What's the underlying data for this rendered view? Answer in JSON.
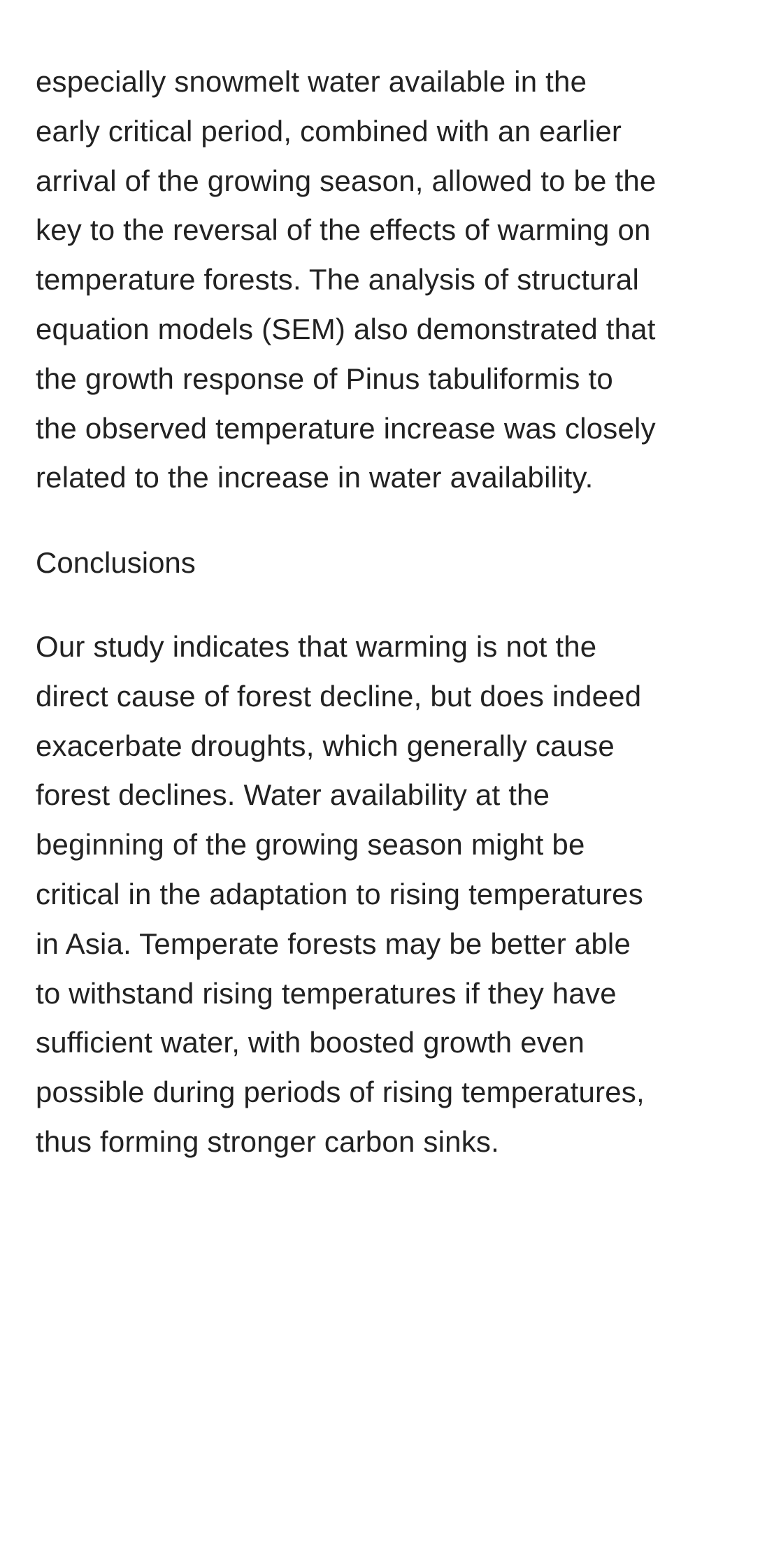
{
  "article": {
    "paragraph_1": {
      "lines": [
        "especially snowmelt water available in the",
        "early critical period, combined with an earlier",
        "arrival of the growing season, allowed to be the",
        "key to the reversal of the effects of warming on",
        "temperature forests. The analysis of structural",
        "equation models (SEM) also demonstrated that",
        "the growth response of Pinus tabuliformis to",
        "the observed temperature increase was closely",
        "related to the increase in water availability."
      ]
    },
    "heading": "Conclusions",
    "paragraph_2": {
      "lines": [
        "Our study indicates that warming is not the",
        "direct cause of forest decline, but does indeed",
        "exacerbate droughts, which generally cause",
        "forest declines. Water availability at the",
        "beginning of the growing season might be",
        "critical in the adaptation to rising temperatures",
        "in Asia. Temperate forests may be better able",
        "to withstand rising temperatures if they have",
        "sufficient water, with boosted growth even",
        "possible during periods of rising temperatures,",
        "thus forming stronger carbon sinks."
      ]
    }
  }
}
